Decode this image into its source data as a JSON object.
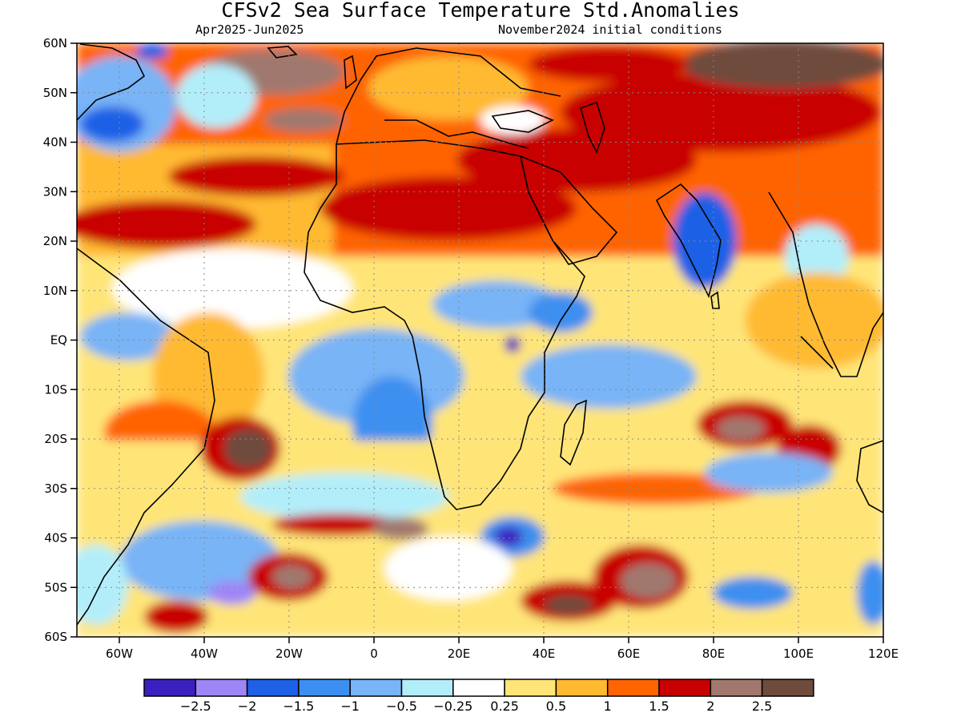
{
  "title": "CFSv2 Sea Surface Temperature Std.Anomalies",
  "subtitle_left": "Apr2025-Jun2025",
  "subtitle_right": "November2024 initial conditions",
  "map": {
    "lon_range": [
      -70,
      120
    ],
    "lat_range": [
      -60,
      60
    ],
    "lat_ticks": [
      {
        "v": 60,
        "label": "60N"
      },
      {
        "v": 50,
        "label": "50N"
      },
      {
        "v": 40,
        "label": "40N"
      },
      {
        "v": 30,
        "label": "30N"
      },
      {
        "v": 20,
        "label": "20N"
      },
      {
        "v": 10,
        "label": "10N"
      },
      {
        "v": 0,
        "label": "EQ"
      },
      {
        "v": -10,
        "label": "10S"
      },
      {
        "v": -20,
        "label": "20S"
      },
      {
        "v": -30,
        "label": "30S"
      },
      {
        "v": -40,
        "label": "40S"
      },
      {
        "v": -50,
        "label": "50S"
      },
      {
        "v": -60,
        "label": "60S"
      }
    ],
    "lon_ticks": [
      {
        "v": -60,
        "label": "60W"
      },
      {
        "v": -40,
        "label": "40W"
      },
      {
        "v": -20,
        "label": "20W"
      },
      {
        "v": 0,
        "label": "0"
      },
      {
        "v": 20,
        "label": "20E"
      },
      {
        "v": 40,
        "label": "40E"
      },
      {
        "v": 60,
        "label": "60E"
      },
      {
        "v": 80,
        "label": "80E"
      },
      {
        "v": 100,
        "label": "100E"
      },
      {
        "v": 120,
        "label": "120E"
      }
    ],
    "gridlines": "dotted"
  },
  "colorbar": {
    "colors": [
      "#3c1fbf",
      "#9e86f7",
      "#1e60e6",
      "#3c8ff0",
      "#78b4f6",
      "#b2eefa",
      "#ffffff",
      "#ffe578",
      "#ffba32",
      "#ff6400",
      "#c80000",
      "#a0786e",
      "#6e4b3c"
    ],
    "labels": [
      "-2.5",
      "-2",
      "-1.5",
      "-1",
      "-0.5",
      "-0.25",
      "0.25",
      "0.5",
      "1",
      "1.5",
      "2",
      "2.5"
    ]
  },
  "chart_data": {
    "type": "heatmap",
    "title": "CFSv2 Sea Surface Temperature Std.Anomalies",
    "subtitle": [
      "Apr2025-Jun2025",
      "November2024 initial conditions"
    ],
    "xlim": [
      -70,
      120
    ],
    "ylim": [
      -60,
      60
    ],
    "levels": [
      -2.5,
      -2,
      -1.5,
      -1,
      -0.5,
      -0.25,
      0.25,
      0.5,
      1,
      1.5,
      2,
      2.5
    ],
    "regions": [
      {
        "lon": [
          -70,
          -55
        ],
        "lat": [
          40,
          50
        ],
        "level": -1.5
      },
      {
        "lon": [
          -50,
          -40
        ],
        "lat": [
          55,
          60
        ],
        "level": -1.5
      },
      {
        "lon": [
          -45,
          -25
        ],
        "lat": [
          50,
          60
        ],
        "level": 2.5
      },
      {
        "lon": [
          -20,
          -5
        ],
        "lat": [
          45,
          55
        ],
        "level": 2.5
      },
      {
        "lon": [
          -65,
          -35
        ],
        "lat": [
          18,
          30
        ],
        "level": 2
      },
      {
        "lon": [
          -45,
          -25
        ],
        "lat": [
          30,
          42
        ],
        "level": 2
      },
      {
        "lon": [
          -40,
          -20
        ],
        "lat": [
          -25,
          -15
        ],
        "level": 2.5
      },
      {
        "lon": [
          -25,
          5
        ],
        "lat": [
          35,
          45
        ],
        "level": 2
      },
      {
        "lon": [
          20,
          40
        ],
        "lat": [
          30,
          40
        ],
        "level": 2
      },
      {
        "lon": [
          -60,
          -30
        ],
        "lat": [
          -5,
          15
        ],
        "level": 0.5
      },
      {
        "lon": [
          -35,
          10
        ],
        "lat": [
          5,
          15
        ],
        "level": 0.25
      },
      {
        "lon": [
          -15,
          10
        ],
        "lat": [
          -20,
          -5
        ],
        "level": -0.5
      },
      {
        "lon": [
          5,
          15
        ],
        "lat": [
          -30,
          -15
        ],
        "level": -1.5
      },
      {
        "lon": [
          50,
          75
        ],
        "lat": [
          -10,
          5
        ],
        "level": -0.5
      },
      {
        "lon": [
          80,
          90
        ],
        "lat": [
          10,
          25
        ],
        "level": -1.5
      },
      {
        "lon": [
          85,
          100
        ],
        "lat": [
          -20,
          -15
        ],
        "level": 2.5
      },
      {
        "lon": [
          30,
          40
        ],
        "lat": [
          -45,
          -35
        ],
        "level": -2.5
      },
      {
        "lon": [
          -45,
          -30
        ],
        "lat": [
          -55,
          -45
        ],
        "level": -2
      },
      {
        "lon": [
          65,
          80
        ],
        "lat": [
          -55,
          -45
        ],
        "level": 2.5
      },
      {
        "lon": [
          40,
          55
        ],
        "lat": [
          -58,
          -50
        ],
        "level": 2.5
      },
      {
        "lon": [
          60,
          80
        ],
        "lat": [
          45,
          60
        ],
        "level": 2
      },
      {
        "lon": [
          90,
          120
        ],
        "lat": [
          50,
          60
        ],
        "level": 2.5
      },
      {
        "lon": [
          95,
          120
        ],
        "lat": [
          0,
          15
        ],
        "level": 0.5
      }
    ]
  }
}
